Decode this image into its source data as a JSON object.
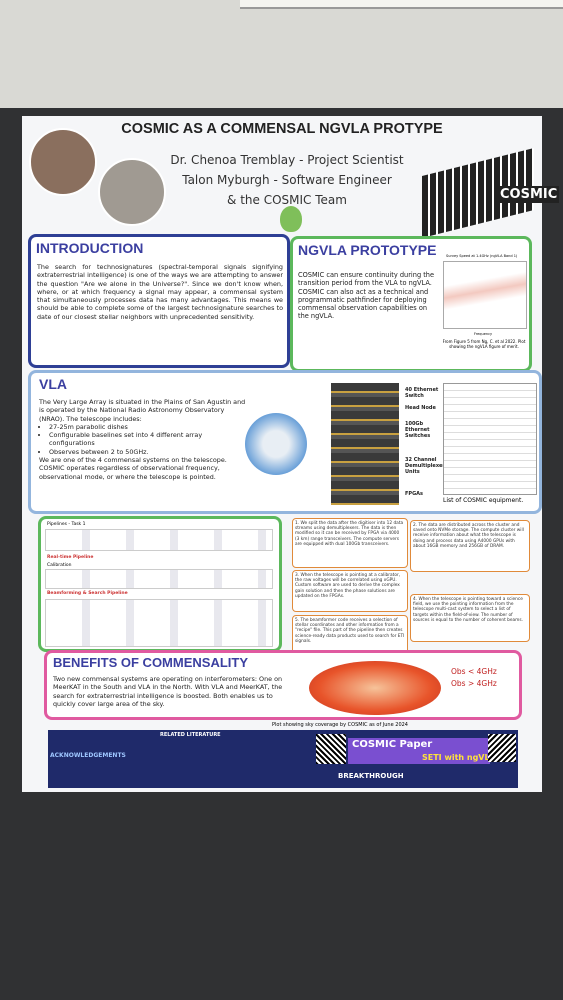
{
  "header": {
    "title": "COSMIC AS A COMMENSAL NGVLA PROTYPE",
    "authors": [
      "Dr. Chenoa Tremblay - Project Scientist",
      "Talon Myburgh - Software Engineer",
      "& the COSMIC Team"
    ],
    "logo": "COSMIC"
  },
  "introduction": {
    "heading": "INTRODUCTION",
    "text": "The search for technosignatures (spectral-temporal signals signifying extraterrestrial intelligence) is one of the ways we are attempting to answer the question \"Are we alone in the Universe?\". Since we don't know when, where, or at which frequency a signal may appear, a commensal system that simultaneously processes data has many advantages. This means we should be able to complete some of the largest technosignature searches to date of our closest stellar neighbors with unprecedented sensitivity."
  },
  "ngvla": {
    "heading": "NGVLA PROTOTYPE",
    "text": "COSMIC can ensure continuity during the transition period from the VLA to ngVLA. COSMIC can also act as a technical and programmatic pathfinder for deploying commensal observation capabilities on the ngVLA.",
    "plot_title": "Survey Speed at 1.4GHz (ngVLA Band 1)",
    "plot_xlabel": "Frequency",
    "caption": "From Figure 5 from Ng, C. et al 2022. Plot showing the ngVLA figure of merit."
  },
  "vla": {
    "heading": "VLA",
    "text": "The Very Large Array is situated in the Plains of San Agustin and is operated by the National Radio Astronomy Observatory (NRAO). The telescope includes:",
    "bullets": [
      "27-25m parabolic dishes",
      "Configurable baselines set into 4 different array configurations",
      "Observes between 2 to 50GHz."
    ],
    "text2": "We are one of the 4 commensal systems on the telescope. COSMIC operates regardless of observational frequency, observational mode, or where the telescope is pointed.",
    "equipment_labels": [
      "40 Ethernet Switch",
      "Head Node",
      "100Gb Ethernet Switches",
      "32 Channel Demultiplexer Units",
      "FPGAs"
    ],
    "equipment_caption": "List of COSMIC equipment."
  },
  "pipeline": {
    "title": "Pipelines - Task 1",
    "sections": [
      "Real-time Pipeline",
      "Calibration",
      "Beamforming & Search Pipeline"
    ]
  },
  "steps": [
    "1. We split the data after the digitiser into 12 data streams using demultiplexers. The data is then modified so it can be received by FPGA via 4000 (3 km) range transceivers. The compute servers are equipped with dual 100Gb transceivers.",
    "2. The data are distributed across the cluster and saved onto NVMe storage. The compute cluster will receive information about what the telescope is doing and process data using A4000 GPUs with about 16GB memory and 256GB of DRAM.",
    "3. When the telescope is pointing at a calibrator, the raw voltages will be correlated using xGPU. Custom software are used to derive the complex gain solution and then the phase solutions are updated on the FPGAs.",
    "4. When the telescope is pointing toward a science field, we use the pointing information from the telescope multi-cast system to select a list of targets within the field-of-view. The number of sources is equal to the number of coherent beams.",
    "5. The beamformer code receives a selection of stellar coordinates and other information from a \"recipe\" file. This part of the pipeline then creates science-ready data products used to search for ETI signals."
  ],
  "benefits": {
    "heading": "BENEFITS OF COMMENSALITY",
    "text": "Two new commensal systems are operating on interferometers: One on MeerKAT in the South and VLA in the North. With VLA and MeerKAT, the search for extraterrestrial intelligence is boosted. Both enables us to quickly cover large area of the sky.",
    "legend": [
      "Obs < 4GHz",
      "Obs > 4GHz"
    ],
    "caption": "Plot showing sky coverage by COSMIC as of June 2024"
  },
  "footer": {
    "literature": "RELATED LITERATURE",
    "acknowledgements": "ACKNOWLEDGEMENTS",
    "paper": "COSMIC Paper",
    "seti": "SETI with ngVLA",
    "sponsor": "BREAKTHROUGH"
  }
}
